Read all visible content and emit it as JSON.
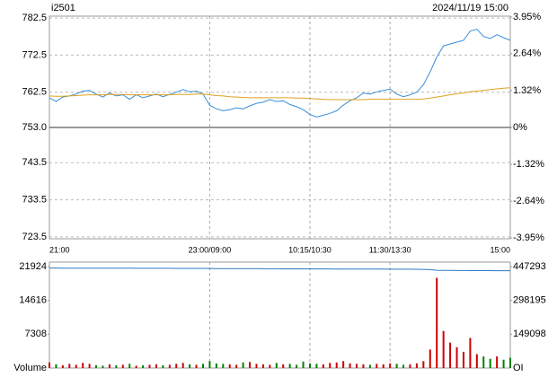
{
  "chart_data": [
    {
      "type": "line",
      "title": "i2501",
      "subtitle": "2024/11/19 15:00",
      "x": [
        0,
        5,
        10,
        15,
        20,
        25,
        30,
        35,
        40,
        45,
        50,
        55,
        60,
        65,
        70,
        75,
        80,
        85,
        90,
        95,
        100,
        105,
        110,
        115,
        120,
        125,
        130,
        135,
        140,
        145,
        150,
        155,
        160,
        165,
        170,
        175,
        180,
        185,
        190,
        195,
        200,
        205,
        210,
        215,
        220,
        225,
        230,
        235,
        240,
        245,
        250,
        255,
        260,
        265,
        270,
        275,
        280,
        285,
        290,
        295,
        300,
        305,
        310,
        315,
        320,
        325,
        330,
        335,
        340,
        345
      ],
      "xlim": [
        0,
        345
      ],
      "xticks": [
        {
          "value": 0,
          "label": "21:00"
        },
        {
          "value": 120,
          "label": "23:00/09:00"
        },
        {
          "value": 195,
          "label": "10:15/10:30"
        },
        {
          "value": 255,
          "label": "11:30/13:30"
        },
        {
          "value": 345,
          "label": "15:00"
        }
      ],
      "series": [
        {
          "color": "#3a8fd9",
          "values": [
            761.0,
            760.0,
            761.2,
            761.5,
            762.0,
            762.8,
            763.0,
            762.0,
            761.2,
            762.3,
            761.5,
            761.8,
            760.6,
            761.8,
            761.0,
            761.5,
            762.0,
            761.3,
            761.9,
            762.5,
            763.2,
            762.6,
            762.8,
            762.0,
            759.0,
            758.0,
            757.5,
            757.8,
            758.3,
            758.0,
            758.8,
            759.5,
            759.8,
            760.5,
            760.0,
            760.2,
            759.2,
            758.6,
            757.8,
            756.5,
            755.8,
            756.3,
            756.8,
            757.5,
            759.0,
            760.2,
            761.0,
            762.3,
            762.0,
            762.6,
            763.0,
            763.3,
            762.0,
            761.3,
            761.8,
            762.5,
            764.5,
            768.0,
            772.0,
            775.0,
            775.5,
            776.0,
            776.5,
            779.0,
            779.5,
            777.5,
            777.0,
            778.0,
            777.2,
            776.5
          ]
        },
        {
          "color": "#e0a020",
          "values": [
            761.5,
            761.4,
            761.4,
            761.5,
            761.6,
            761.7,
            761.8,
            761.8,
            761.8,
            761.9,
            761.9,
            761.9,
            761.8,
            761.8,
            761.8,
            761.8,
            761.8,
            761.8,
            761.8,
            761.9,
            761.9,
            761.9,
            762.0,
            762.0,
            761.8,
            761.6,
            761.5,
            761.3,
            761.2,
            761.1,
            761.0,
            761.0,
            761.0,
            761.0,
            761.0,
            761.0,
            761.0,
            760.9,
            760.9,
            760.8,
            760.7,
            760.6,
            760.5,
            760.5,
            760.5,
            760.5,
            760.5,
            760.5,
            760.6,
            760.6,
            760.6,
            760.6,
            760.6,
            760.6,
            760.6,
            760.6,
            760.7,
            760.9,
            761.2,
            761.5,
            761.8,
            762.1,
            762.3,
            762.6,
            762.8,
            763.0,
            763.2,
            763.4,
            763.6,
            763.7
          ]
        }
      ],
      "ylim": [
        723.0,
        783.0
      ],
      "yticks": [
        782.5,
        772.5,
        762.5,
        {
          "value": 753,
          "label": "753.0"
        },
        743.5,
        733.5,
        723.5
      ],
      "y2lim": [
        -3.98,
        3.98
      ],
      "y2ticks": [
        {
          "value": 3.95,
          "label": "3.95%"
        },
        {
          "value": 2.64,
          "label": "2.64%"
        },
        {
          "value": 1.32,
          "label": "1.32%"
        },
        {
          "value": 0,
          "label": "0%"
        },
        {
          "value": -1.32,
          "label": "-1.32%"
        },
        {
          "value": -2.64,
          "label": "-2.64%"
        },
        {
          "value": -3.95,
          "label": "-3.95%"
        }
      ],
      "baseline": 753,
      "up_color": "#cc0000",
      "down_color": "#008000",
      "flat_color": "#000000",
      "grid": true
    },
    {
      "type": "bar",
      "series": [
        {
          "name": "Volume",
          "color": "#cc0000",
          "values": [
            1200,
            800,
            600,
            900,
            700,
            1100,
            900,
            600,
            500,
            800,
            600,
            700,
            900,
            500,
            600,
            700,
            800,
            600,
            700,
            900,
            1100,
            800,
            700,
            900,
            1500,
            1000,
            900,
            800,
            700,
            1200,
            1300,
            900,
            800,
            700,
            1100,
            800,
            900,
            700,
            1400,
            1000,
            900,
            800,
            1100,
            1200,
            1500,
            1000,
            900,
            800,
            700,
            900,
            800,
            1000,
            900,
            700,
            800,
            1000,
            1500,
            4000,
            19500,
            8000,
            5500,
            4500,
            3500,
            6500,
            3000,
            2500,
            2000,
            2500,
            1800,
            2200
          ]
        },
        {
          "name": "OI",
          "color": "#2a78c0",
          "axis": "y2",
          "values": [
            441000,
            440900,
            440800,
            440800,
            440700,
            440600,
            440600,
            440500,
            440400,
            440300,
            440300,
            440200,
            440100,
            440000,
            440000,
            439900,
            439800,
            439700,
            439700,
            439600,
            439500,
            439500,
            439400,
            439300,
            439000,
            438800,
            438600,
            438500,
            438400,
            438300,
            438200,
            438100,
            438000,
            437900,
            437800,
            437700,
            437600,
            437500,
            437400,
            437300,
            437200,
            437100,
            437000,
            436900,
            436800,
            436700,
            436600,
            436500,
            436400,
            436300,
            436200,
            436100,
            436000,
            435900,
            435800,
            435600,
            435200,
            434000,
            431000,
            430500,
            430200,
            430000,
            429800,
            429700,
            429600,
            429500,
            429400,
            429300,
            429200,
            429100
          ]
        }
      ],
      "ylim": [
        0,
        22900
      ],
      "yticks": [
        7308,
        14616,
        21924
      ],
      "y2lim": [
        0,
        467200
      ],
      "y2ticks": [
        149098,
        298195,
        447293
      ],
      "up_color": "#cc0000",
      "down_color": "#008000"
    }
  ]
}
